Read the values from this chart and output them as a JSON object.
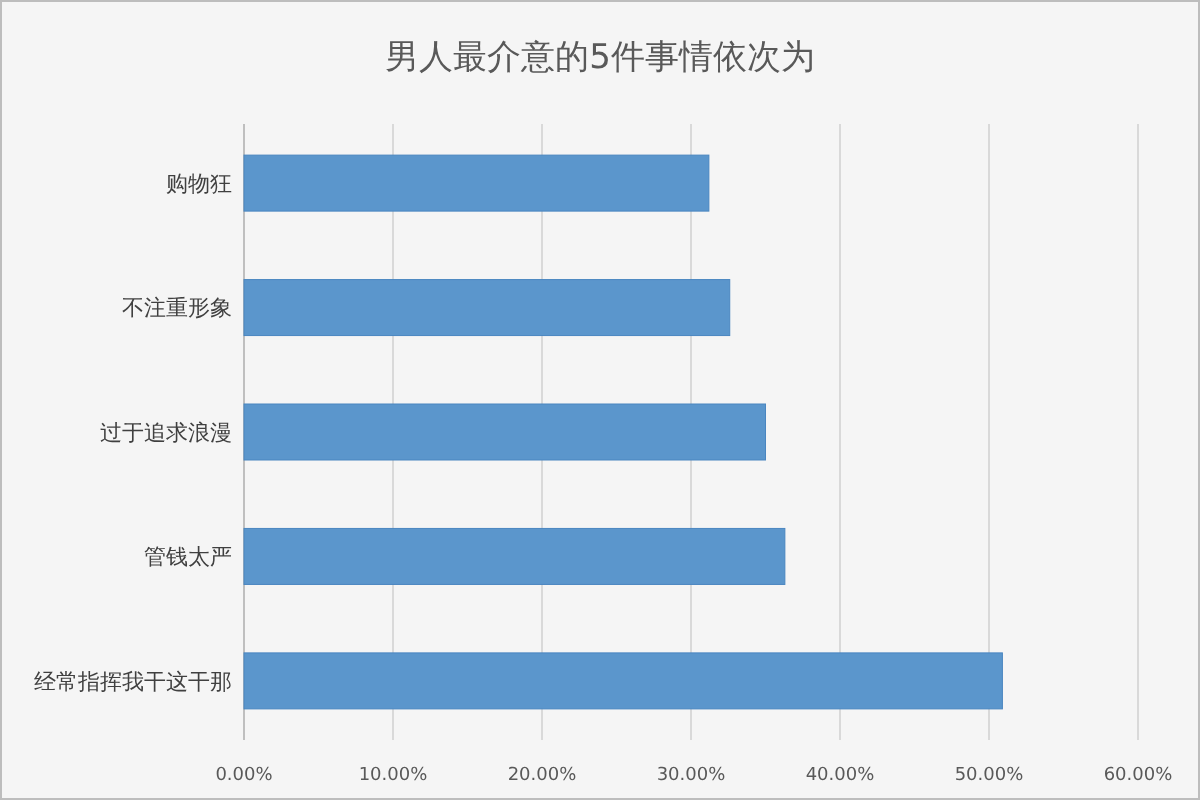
{
  "chart_data": {
    "type": "bar",
    "orientation": "horizontal",
    "title": "男人最介意的5件事情依次为",
    "categories": [
      "购物狂",
      "不注重形象",
      "过于追求浪漫",
      "管钱太严",
      "经常指挥我干这干那"
    ],
    "values": [
      31.2,
      32.6,
      35.0,
      36.3,
      50.9
    ],
    "color": "#5b96cc",
    "xlim": [
      0,
      60
    ],
    "xticks": [
      {
        "value": 0,
        "label": "0.00%"
      },
      {
        "value": 10,
        "label": "10.00%"
      },
      {
        "value": 20,
        "label": "20.00%"
      },
      {
        "value": 30,
        "label": "30.00%"
      },
      {
        "value": 40,
        "label": "40.00%"
      },
      {
        "value": 50,
        "label": "50.00%"
      },
      {
        "value": 60,
        "label": "60.00%"
      }
    ],
    "grid": "x"
  }
}
